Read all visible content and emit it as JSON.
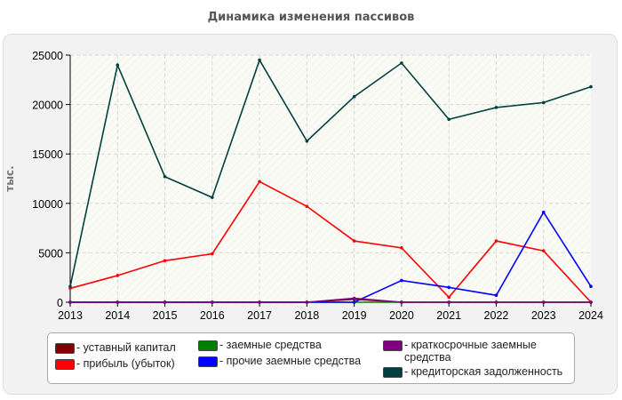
{
  "chart_data": {
    "type": "line",
    "title": "Динамика изменения пассивов",
    "ylabel": "тыс.",
    "xlabel": "",
    "x": [
      "2013",
      "2014",
      "2015",
      "2016",
      "2017",
      "2018",
      "2019",
      "2020",
      "2021",
      "2022",
      "2023",
      "2024"
    ],
    "ylim": [
      0,
      25000
    ],
    "yticks": [
      "0",
      "5000",
      "10000",
      "15000",
      "20000",
      "25000"
    ],
    "grid": true,
    "legend_position": "bottom",
    "series": [
      {
        "name": "- уставный капитал",
        "color": "#800000",
        "values": [
          0,
          0,
          0,
          0,
          0,
          0,
          300,
          0,
          0,
          0,
          0,
          0
        ]
      },
      {
        "name": "- прибыль (убыток)",
        "color": "#ff0000",
        "values": [
          1400,
          2700,
          4200,
          4900,
          12200,
          9700,
          6200,
          5500,
          500,
          6200,
          5200,
          0
        ]
      },
      {
        "name": "- заемные средства",
        "color": "#008000",
        "values": [
          0,
          0,
          0,
          0,
          0,
          0,
          0,
          0,
          0,
          0,
          0,
          0
        ]
      },
      {
        "name": "- прочие заемные средства",
        "color": "#0000ff",
        "values": [
          0,
          0,
          0,
          0,
          0,
          0,
          0,
          2200,
          1500,
          700,
          9100,
          1600
        ]
      },
      {
        "name": "- краткосрочные заемные средства",
        "color": "#800080",
        "values": [
          0,
          0,
          0,
          0,
          0,
          0,
          400,
          0,
          0,
          0,
          0,
          0
        ]
      },
      {
        "name": "- кредиторская задолженность",
        "color": "#004040",
        "values": [
          1600,
          24000,
          12700,
          10600,
          24500,
          16300,
          20800,
          24200,
          18500,
          19700,
          20200,
          21800
        ]
      }
    ]
  }
}
